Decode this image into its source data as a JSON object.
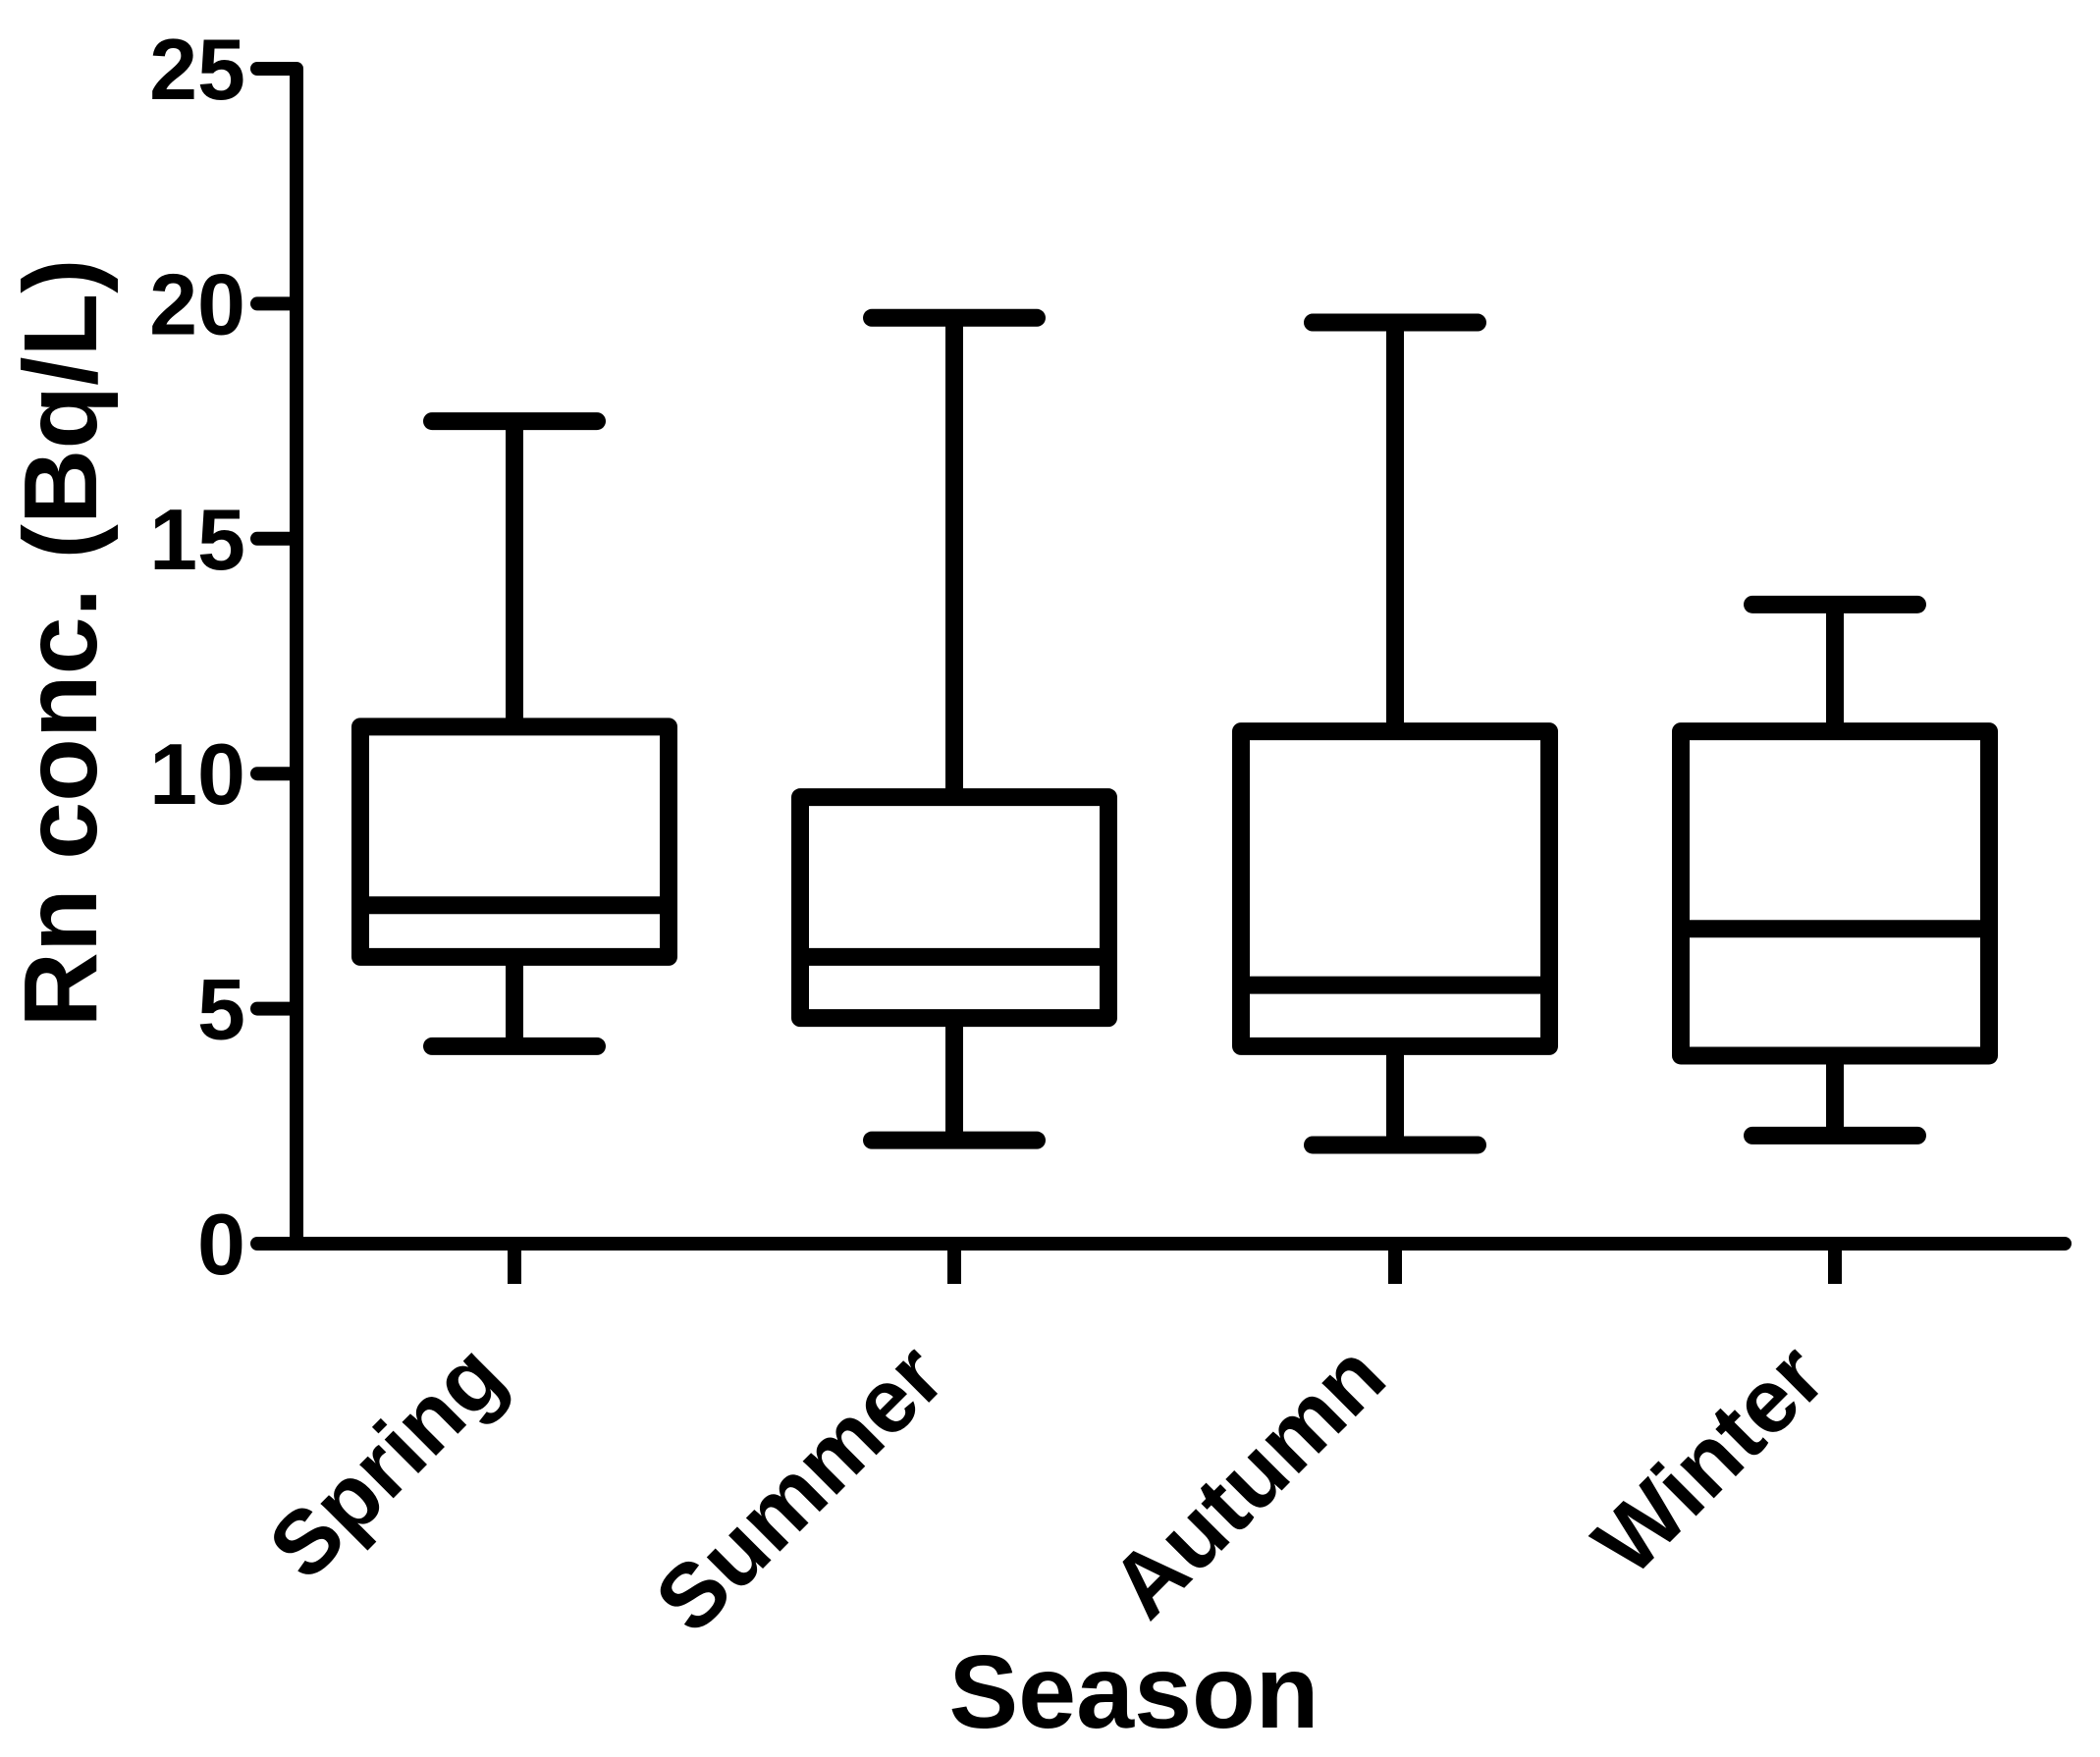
{
  "figure": {
    "background_color": "#ffffff",
    "ink_color": "#000000"
  },
  "chart_data": {
    "type": "boxplot",
    "title": "",
    "xlabel": "Season",
    "ylabel": "Rn conc. (Bq/L)",
    "ylim": [
      0,
      25
    ],
    "y_ticks": [
      0,
      5,
      10,
      15,
      20,
      25
    ],
    "grid": "off",
    "legend": "none",
    "whiskers": "min-max",
    "categories": [
      "Spring",
      "Summer",
      "Autumn",
      "Winter"
    ],
    "series": [
      {
        "name": "Spring",
        "min": 4.2,
        "q1": 6.1,
        "median": 7.2,
        "q3": 11.0,
        "max": 17.5
      },
      {
        "name": "Summer",
        "min": 2.2,
        "q1": 4.8,
        "median": 6.1,
        "q3": 9.5,
        "max": 19.7
      },
      {
        "name": "Autumn",
        "min": 2.1,
        "q1": 4.2,
        "median": 5.5,
        "q3": 10.9,
        "max": 19.6
      },
      {
        "name": "Winter",
        "min": 2.3,
        "q1": 4.0,
        "median": 6.7,
        "q3": 10.9,
        "max": 13.6
      }
    ]
  }
}
